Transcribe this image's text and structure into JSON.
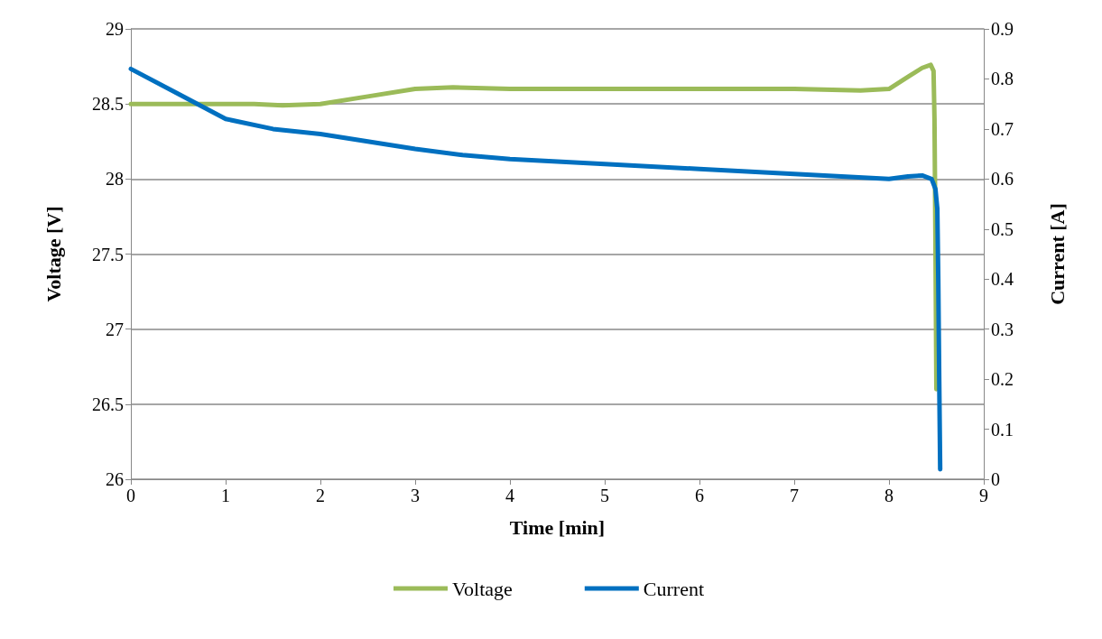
{
  "chart_data": {
    "type": "line",
    "xlabel": "Time [min]",
    "ylabel": "Voltage [V]",
    "y2label": "Current [A]",
    "xlim": [
      0,
      9
    ],
    "xticks": [
      0,
      1,
      2,
      3,
      4,
      5,
      6,
      7,
      8,
      9
    ],
    "ylim": [
      26,
      29
    ],
    "yticks": [
      26,
      26.5,
      27,
      27.5,
      28,
      28.5,
      29
    ],
    "y2lim": [
      0,
      0.9
    ],
    "y2ticks": [
      0,
      0.1,
      0.2,
      0.3,
      0.4,
      0.5,
      0.6,
      0.7,
      0.8,
      0.9
    ],
    "grid": "y",
    "legend": "bottom",
    "marker": "none",
    "line_style": "solid",
    "series": [
      {
        "name": "Voltage",
        "color": "#9bbb59",
        "x": [
          0,
          0.5,
          1,
          1.3,
          1.6,
          2,
          2.5,
          3,
          3.4,
          4,
          5,
          6,
          7,
          7.7,
          8,
          8.2,
          8.35,
          8.44,
          8.47,
          8.48,
          8.49,
          8.5
        ],
        "values": [
          28.5,
          28.5,
          28.5,
          28.5,
          28.49,
          28.5,
          28.55,
          28.6,
          28.61,
          28.6,
          28.6,
          28.6,
          28.6,
          28.59,
          28.6,
          28.68,
          28.74,
          28.76,
          28.72,
          28.4,
          27.6,
          26.6
        ]
      },
      {
        "name": "Current",
        "color": "#0070c0",
        "axis": "y2",
        "x": [
          0,
          0.5,
          1,
          1.5,
          2,
          2.5,
          3,
          3.5,
          4,
          5,
          6,
          7,
          7.5,
          8,
          8.2,
          8.35,
          8.45,
          8.49,
          8.51,
          8.52,
          8.53,
          8.54
        ],
        "values": [
          0.82,
          0.77,
          0.72,
          0.7,
          0.69,
          0.675,
          0.66,
          0.648,
          0.64,
          0.63,
          0.62,
          0.61,
          0.605,
          0.6,
          0.605,
          0.607,
          0.6,
          0.58,
          0.54,
          0.4,
          0.2,
          0.02
        ]
      }
    ]
  }
}
